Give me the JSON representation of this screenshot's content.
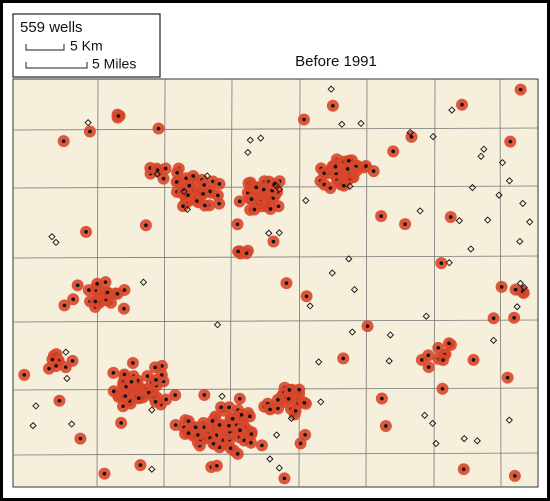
{
  "legend": {
    "count": "559 wells",
    "scale_km": "5 Km",
    "scale_miles": "5 Miles"
  },
  "title": "Before 1991"
}
